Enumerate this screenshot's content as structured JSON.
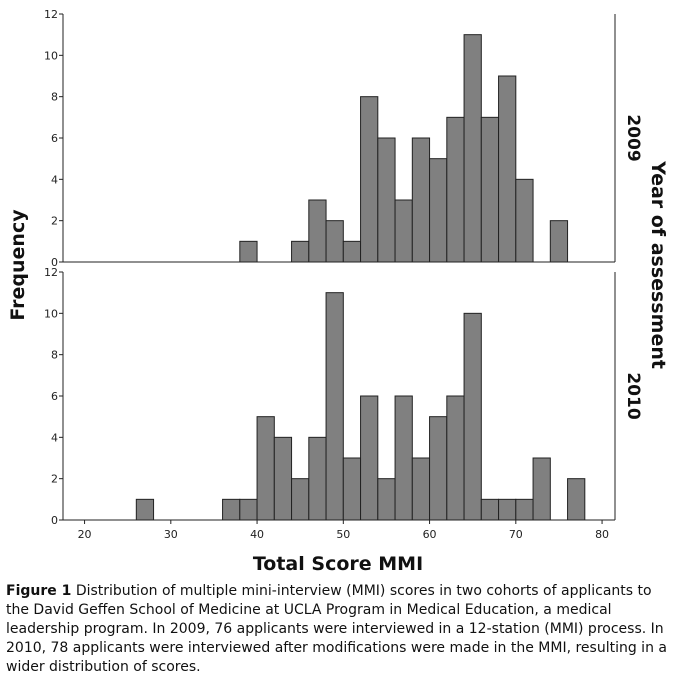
{
  "chart_data": {
    "type": "bar",
    "title": "",
    "xlabel": "Total Score MMI",
    "ylabel": "Frequency",
    "facet_label": "Year of assessment",
    "bin_width": 2,
    "xlim": [
      17.5,
      81.5
    ],
    "x_ticks": [
      20,
      30,
      40,
      50,
      60,
      70,
      80
    ],
    "ylim": [
      0,
      12
    ],
    "y_ticks": [
      0,
      2,
      4,
      6,
      8,
      10,
      12
    ],
    "grid": false,
    "panels": [
      {
        "name": "2009",
        "bins": [
          {
            "x": 39,
            "count": 1
          },
          {
            "x": 45,
            "count": 1
          },
          {
            "x": 47,
            "count": 3
          },
          {
            "x": 49,
            "count": 2
          },
          {
            "x": 51,
            "count": 1
          },
          {
            "x": 53,
            "count": 8
          },
          {
            "x": 55,
            "count": 6
          },
          {
            "x": 57,
            "count": 3
          },
          {
            "x": 59,
            "count": 6
          },
          {
            "x": 61,
            "count": 5
          },
          {
            "x": 63,
            "count": 7
          },
          {
            "x": 65,
            "count": 11
          },
          {
            "x": 67,
            "count": 7
          },
          {
            "x": 69,
            "count": 9
          },
          {
            "x": 71,
            "count": 4
          },
          {
            "x": 75,
            "count": 2
          }
        ]
      },
      {
        "name": "2010",
        "bins": [
          {
            "x": 27,
            "count": 1
          },
          {
            "x": 37,
            "count": 1
          },
          {
            "x": 39,
            "count": 1
          },
          {
            "x": 41,
            "count": 5
          },
          {
            "x": 43,
            "count": 4
          },
          {
            "x": 45,
            "count": 2
          },
          {
            "x": 47,
            "count": 4
          },
          {
            "x": 49,
            "count": 11
          },
          {
            "x": 51,
            "count": 3
          },
          {
            "x": 53,
            "count": 6
          },
          {
            "x": 55,
            "count": 2
          },
          {
            "x": 57,
            "count": 6
          },
          {
            "x": 59,
            "count": 3
          },
          {
            "x": 61,
            "count": 5
          },
          {
            "x": 63,
            "count": 6
          },
          {
            "x": 65,
            "count": 10
          },
          {
            "x": 67,
            "count": 1
          },
          {
            "x": 69,
            "count": 1
          },
          {
            "x": 71,
            "count": 1
          },
          {
            "x": 73,
            "count": 3
          },
          {
            "x": 77,
            "count": 2
          }
        ]
      }
    ]
  },
  "caption": {
    "label": "Figure 1",
    "text": " Distribution of multiple mini-interview (MMI) scores in two cohorts of applicants to the David Geffen School of Medicine at UCLA Program in Medical Education, a medical leadership program. In 2009, 76 applicants were interviewed in a 12-station (MMI) process. In 2010, 78 applicants were interviewed after modifications were made in the MMI, resulting in a wider distribution of scores."
  }
}
